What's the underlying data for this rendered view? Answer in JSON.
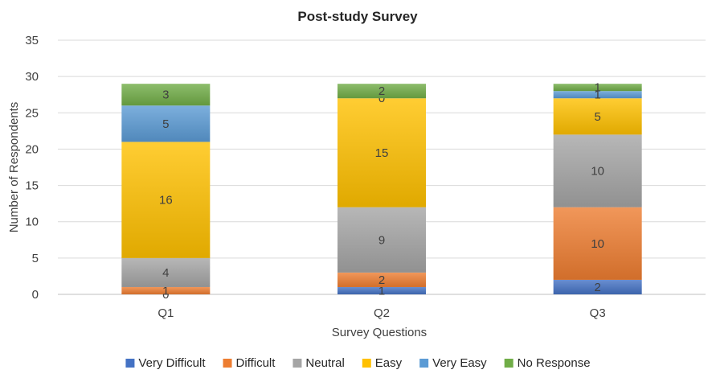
{
  "chart_data": {
    "type": "bar",
    "stacked": true,
    "title": "Post-study Survey",
    "xlabel": "Survey Questions",
    "ylabel": "Number of Respondents",
    "ylim": [
      0,
      35
    ],
    "yticks": [
      "0",
      "5",
      "10",
      "15",
      "20",
      "25",
      "30",
      "35"
    ],
    "categories": [
      "Q1",
      "Q2",
      "Q3"
    ],
    "grid": true,
    "legend_position": "bottom",
    "series": [
      {
        "name": "Very Difficult",
        "color": "#4472c4",
        "values": [
          0,
          1,
          2
        ]
      },
      {
        "name": "Difficult",
        "color": "#ed7d31",
        "values": [
          1,
          2,
          10
        ]
      },
      {
        "name": "Neutral",
        "color": "#a5a5a5",
        "values": [
          4,
          9,
          10
        ]
      },
      {
        "name": "Easy",
        "color": "#ffc000",
        "values": [
          16,
          15,
          5
        ]
      },
      {
        "name": "Very Easy",
        "color": "#5b9bd5",
        "values": [
          5,
          0,
          1
        ]
      },
      {
        "name": "No Response",
        "color": "#70ad47",
        "values": [
          3,
          2,
          1
        ]
      }
    ]
  }
}
